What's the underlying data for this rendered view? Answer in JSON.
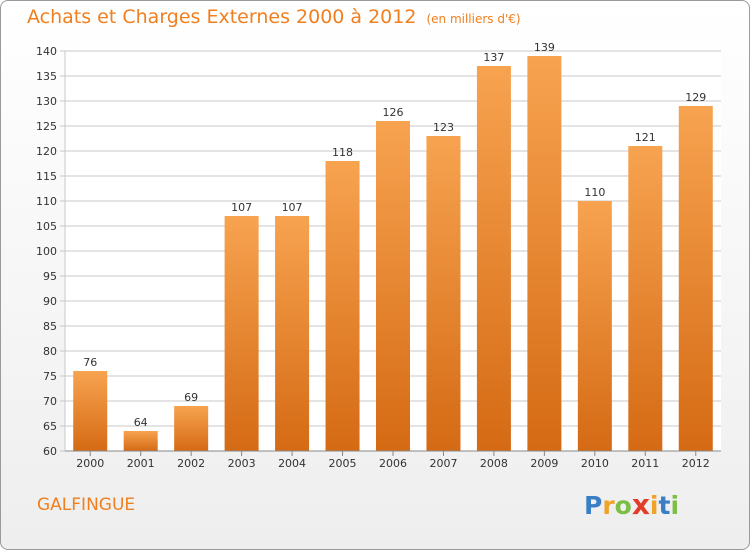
{
  "title": "Achats et Charges Externes 2000 à 2012",
  "subtitle": "(en milliers d'€)",
  "commune": "GALFINGUE",
  "logo": {
    "text": "Proxiti",
    "colors": [
      "#3a7fc6",
      "#f0a32a",
      "#7bbf44",
      "#e23c2a",
      "#f0a32a",
      "#3a7fc6",
      "#7bbf44"
    ]
  },
  "colors": {
    "accent": "#f07f1f",
    "bar_top": "#f7a350",
    "bar_bottom": "#d56a14",
    "grid": "#c8c8c8"
  },
  "chart_data": {
    "type": "bar",
    "categories": [
      "2000",
      "2001",
      "2002",
      "2003",
      "2004",
      "2005",
      "2006",
      "2007",
      "2008",
      "2009",
      "2010",
      "2011",
      "2012"
    ],
    "values": [
      76,
      64,
      69,
      107,
      107,
      118,
      126,
      123,
      137,
      139,
      110,
      121,
      129
    ],
    "title": "Achats et Charges Externes 2000 à 2012",
    "subtitle": "(en milliers d'€)",
    "xlabel": "",
    "ylabel": "",
    "ylim": [
      60,
      140
    ],
    "yticks": [
      60,
      65,
      70,
      75,
      80,
      85,
      90,
      95,
      100,
      105,
      110,
      115,
      120,
      125,
      130,
      135,
      140
    ],
    "grid": true,
    "legend": "none"
  }
}
